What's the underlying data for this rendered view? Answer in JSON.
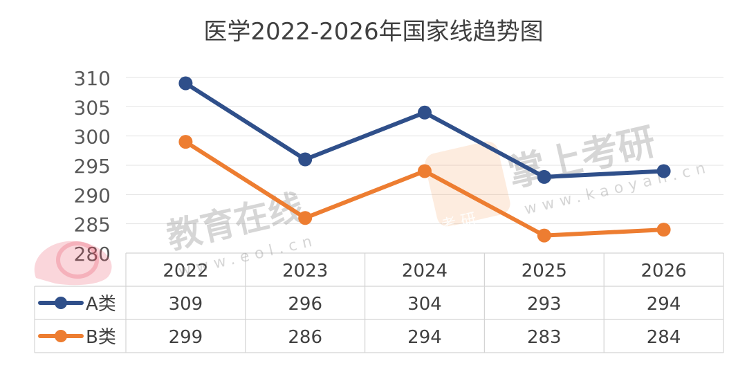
{
  "chart_data": {
    "type": "line",
    "title": "医学2022-2026年国家线趋势图",
    "categories": [
      "2022",
      "2023",
      "2024",
      "2025",
      "2026"
    ],
    "series": [
      {
        "name": "A类",
        "values": [
          309,
          296,
          304,
          293,
          294
        ],
        "color": "#2f4f8a"
      },
      {
        "name": "B类",
        "values": [
          299,
          286,
          294,
          283,
          284
        ],
        "color": "#ed7d31"
      }
    ],
    "yticks": [
      280,
      285,
      290,
      295,
      300,
      305,
      310
    ],
    "ylim": [
      280,
      310
    ],
    "grid": true,
    "legend": "data-table",
    "data_table": true
  },
  "watermarks": {
    "eol_cn": "教育在线",
    "eol_url": "www.eol.cn",
    "kaoyan_cn": "掌上考研",
    "kaoyan_url": "www.kaoyan.cn",
    "kaoyan_logo_text": "考 研"
  }
}
